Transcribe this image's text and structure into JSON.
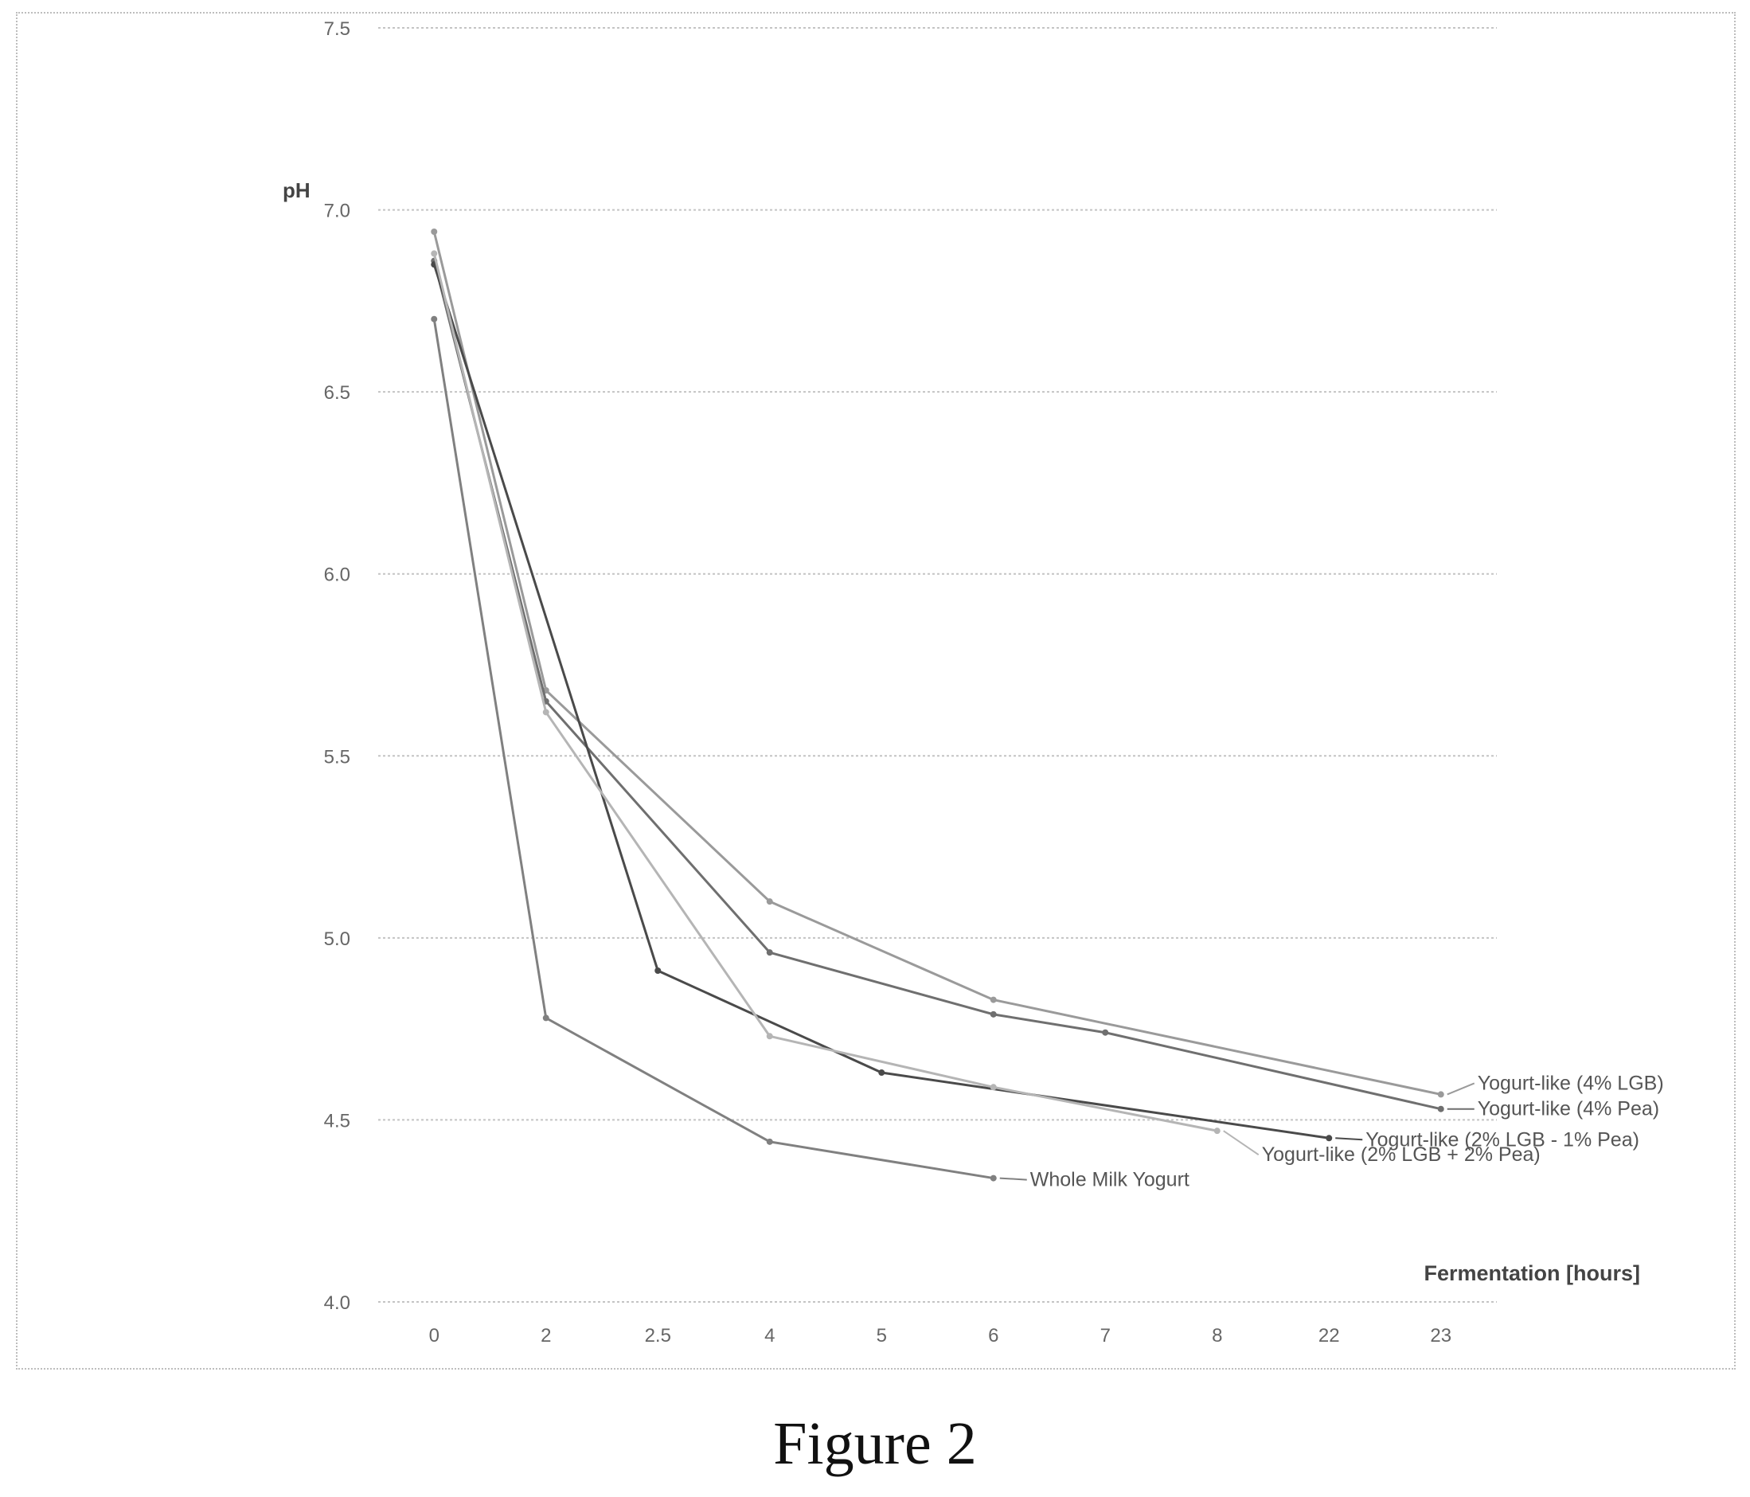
{
  "chart_data": {
    "type": "line",
    "title": "",
    "ylabel": "pH",
    "xlabel": "Fermentation [hours]",
    "ylim": [
      4.0,
      7.5
    ],
    "yticks": [
      "4.0",
      "4.5",
      "5.0",
      "5.5",
      "6.0",
      "6.5",
      "7.0",
      "7.5"
    ],
    "categories": [
      "0",
      "2",
      "2.5",
      "4",
      "5",
      "6",
      "7",
      "8",
      "22",
      "23"
    ],
    "grid": true,
    "legend": "inline labels at line ends",
    "series": [
      {
        "name": "Yogurt-like (4% LGB)",
        "color": "#9a9a9a",
        "values": [
          6.94,
          5.68,
          null,
          5.1,
          null,
          4.83,
          null,
          null,
          null,
          4.57
        ]
      },
      {
        "name": "Yogurt-like (4% Pea)",
        "color": "#6f6f6f",
        "values": [
          6.86,
          5.65,
          null,
          4.96,
          null,
          4.79,
          4.74,
          null,
          null,
          4.53
        ]
      },
      {
        "name": "Yogurt-like (2% LGB - 1% Pea)",
        "color": "#4a4a4a",
        "values": [
          6.85,
          null,
          4.91,
          null,
          4.63,
          null,
          null,
          null,
          4.45,
          null
        ]
      },
      {
        "name": "Yogurt-like (2% LGB + 2% Pea)",
        "color": "#b5b5b5",
        "values": [
          6.88,
          5.62,
          null,
          4.73,
          null,
          4.59,
          null,
          4.47,
          null,
          null
        ]
      },
      {
        "name": "Whole Milk Yogurt",
        "color": "#808080",
        "values": [
          6.7,
          4.78,
          null,
          4.44,
          null,
          4.34,
          null,
          null,
          null,
          null
        ]
      }
    ]
  },
  "figure": {
    "caption": "Figure 2"
  }
}
